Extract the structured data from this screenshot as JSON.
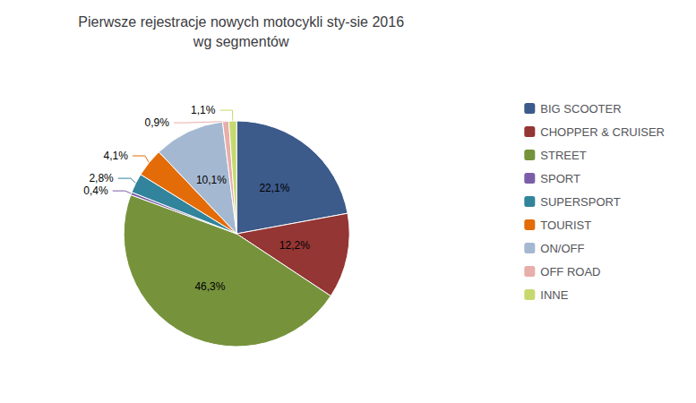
{
  "chart_data": {
    "type": "pie",
    "title": "Pierwsze rejestracje nowych motocykli sty-sie 2016\nwg segmentów",
    "categories": [
      "BIG SCOOTER",
      "CHOPPER & CRUISER",
      "STREET",
      "SPORT",
      "SUPERSPORT",
      "TOURIST",
      "ON/OFF",
      "OFF ROAD",
      "INNE"
    ],
    "values": [
      22.1,
      12.2,
      46.3,
      0.4,
      2.8,
      4.1,
      10.1,
      0.9,
      1.1
    ],
    "value_labels": [
      "22,1%",
      "12,2%",
      "46,3%",
      "0,4%",
      "2,8%",
      "4,1%",
      "10,1%",
      "0,9%",
      "1,1%"
    ],
    "colors": [
      "#3C5A8A",
      "#943634",
      "#76933C",
      "#7B5EA7",
      "#31849B",
      "#E36C09",
      "#A5B8D1",
      "#E8AEAA",
      "#C6D96F"
    ],
    "data_labels": true,
    "legend": "right"
  }
}
